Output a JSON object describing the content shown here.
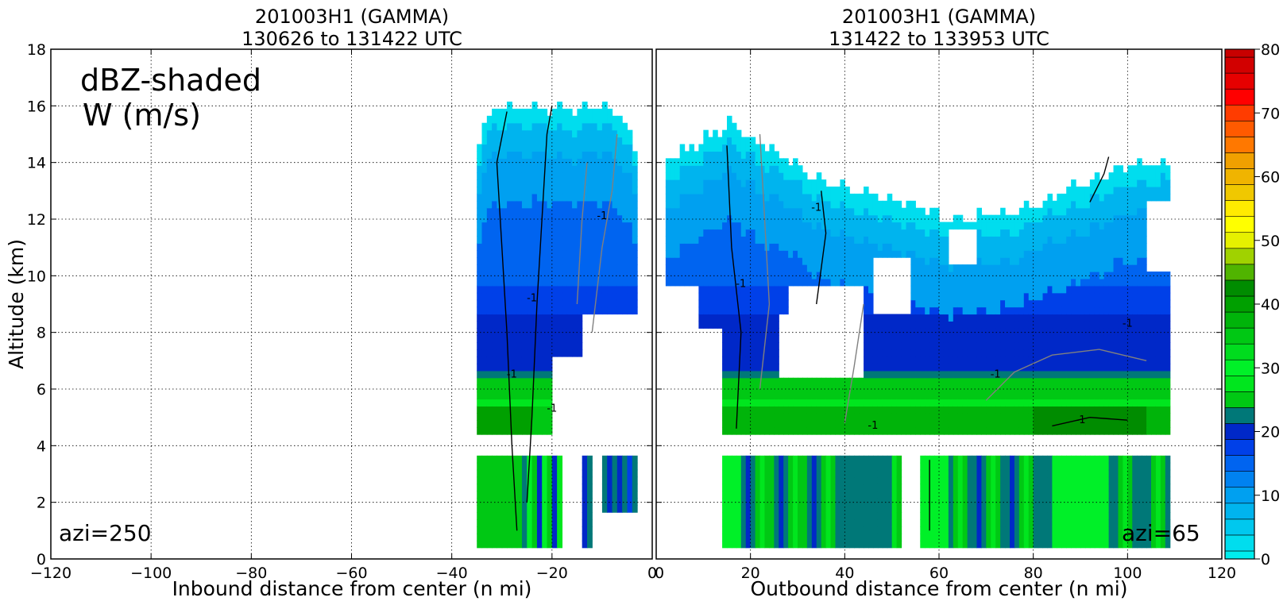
{
  "figure_label": "dBZ-shaded",
  "figure_label_line2": "W (m/s)",
  "chart_data": [
    {
      "type": "heatmap",
      "title": "201003H1 (GAMMA)",
      "subtitle": "130626 to 131422 UTC",
      "xlabel": "Inbound distance from center (n mi)",
      "ylabel": "Altitude (km)",
      "xlim": [
        -120,
        0
      ],
      "ylim": [
        0,
        18
      ],
      "x_ticks": [
        "−120",
        "−100",
        "−80",
        "−60",
        "−40",
        "−20",
        "0"
      ],
      "y_ticks": [
        "0",
        "2",
        "4",
        "6",
        "8",
        "10",
        "12",
        "14",
        "16",
        "18"
      ],
      "grid": true,
      "annotation": "azi=250",
      "contour_label": "-1",
      "data_extent_x": [
        -35,
        -3
      ],
      "data_gap_km": [
        3.7,
        4.3
      ]
    },
    {
      "type": "heatmap",
      "title": "201003H1 (GAMMA)",
      "subtitle": "131422 to 133953 UTC",
      "xlabel": "Outbound distance from center (n mi)",
      "ylabel": "",
      "xlim": [
        0,
        120
      ],
      "ylim": [
        0,
        18
      ],
      "x_ticks": [
        "0",
        "20",
        "40",
        "60",
        "80",
        "100",
        "120"
      ],
      "grid": true,
      "annotation": "azi=65",
      "contour_label": "-1",
      "data_extent_x": [
        2,
        109
      ],
      "data_gap_km": [
        3.7,
        4.3
      ]
    }
  ],
  "colorbar": {
    "min": 0,
    "max": 80,
    "step": 2.5,
    "tick_labels": [
      "0",
      "10",
      "20",
      "30",
      "40",
      "50",
      "60",
      "70",
      "80"
    ],
    "colors": [
      "#00eeee",
      "#00ddee",
      "#00c8ee",
      "#00b4ee",
      "#00a0f0",
      "#0082f0",
      "#0064f0",
      "#0040e8",
      "#0028c8",
      "#007878",
      "#00c814",
      "#00e61e",
      "#00f028",
      "#00dc1e",
      "#00c814",
      "#00b40a",
      "#00a000",
      "#008c00",
      "#50b400",
      "#a0d200",
      "#e6f000",
      "#ffff00",
      "#ffeb00",
      "#f0c800",
      "#f0b400",
      "#f0a000",
      "#ff7800",
      "#ff5a00",
      "#ff3c00",
      "#ff0000",
      "#e60000",
      "#d20000",
      "#c80000",
      "#d2005a",
      "#f000a0",
      "#ff00ff",
      "#d246f0",
      "#aa46d2",
      "#7846b4",
      "#503264",
      "#000000"
    ]
  }
}
